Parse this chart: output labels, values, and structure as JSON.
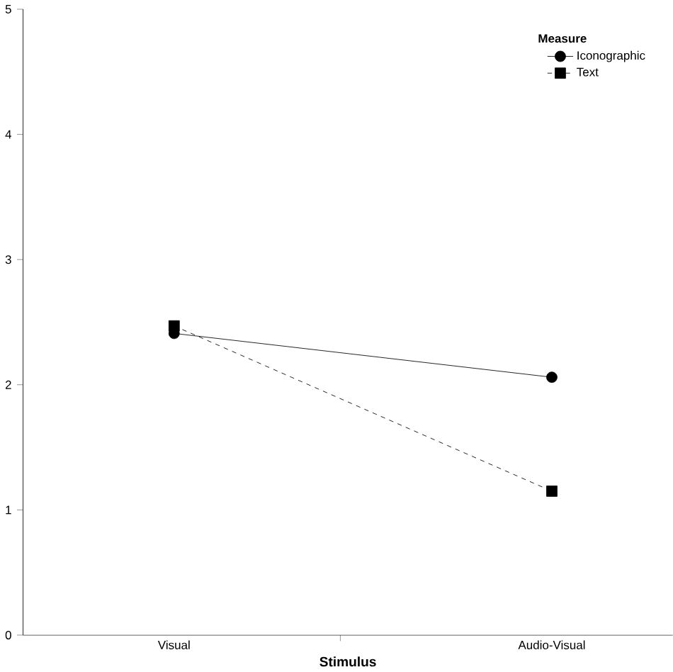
{
  "chart_data": {
    "type": "line",
    "xlabel": "Stimulus",
    "legend_title": "Measure",
    "categories": [
      "Visual",
      "Audio-Visual"
    ],
    "series": [
      {
        "name": "Iconographic",
        "color": "#000000",
        "values": [
          2.41,
          2.06
        ],
        "marker": "circle",
        "line_style": "solid"
      },
      {
        "name": "Text",
        "color": "#000000",
        "values": [
          2.47,
          1.15
        ],
        "marker": "square",
        "line_style": "dashed"
      }
    ],
    "ylim": [
      0,
      5
    ],
    "yticks": [
      0,
      1,
      2,
      3,
      4,
      5
    ],
    "legend": "top right"
  }
}
